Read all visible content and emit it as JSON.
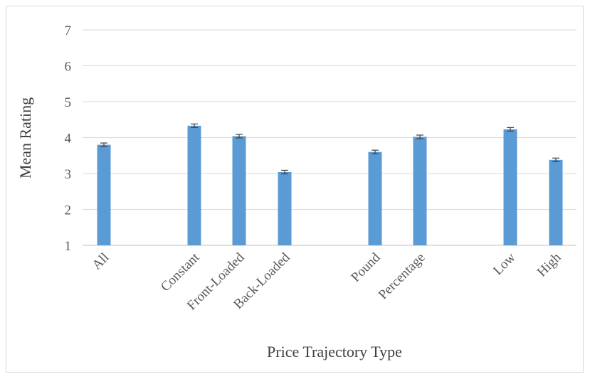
{
  "chart_data": {
    "type": "bar",
    "xlabel": "Price Trajectory Type",
    "ylabel": "Mean Rating",
    "ylim": [
      1,
      7
    ],
    "yticks": [
      1,
      2,
      3,
      4,
      5,
      6,
      7
    ],
    "grid": true,
    "bar_color": "#5b9bd5",
    "categories": [
      "All",
      "Constant",
      "Front-Loaded",
      "Back-Loaded",
      "Pound",
      "Percentage",
      "Low",
      "High"
    ],
    "groups": [
      [
        "All"
      ],
      [
        "Constant",
        "Front-Loaded",
        "Back-Loaded"
      ],
      [
        "Pound",
        "Percentage"
      ],
      [
        "Low",
        "High"
      ]
    ],
    "values": [
      3.8,
      4.33,
      4.04,
      3.04,
      3.6,
      4.02,
      4.23,
      3.38
    ],
    "error": [
      0.05,
      0.05,
      0.05,
      0.05,
      0.05,
      0.05,
      0.05,
      0.05
    ]
  }
}
